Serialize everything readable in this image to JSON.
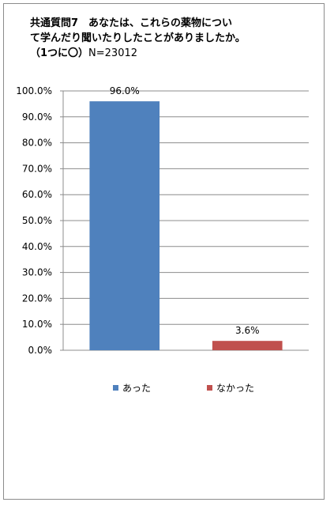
{
  "title": {
    "line1": "共通質問7　あなたは、これらの薬物につい",
    "line2": "て学んだり聞いたりしたことがありましたか。",
    "line3_prefix": "（1つに〇）",
    "line3_n": "N=23012"
  },
  "chart_data": {
    "type": "bar",
    "categories": [
      "あった",
      "なかった"
    ],
    "values": [
      96.0,
      3.6
    ],
    "value_labels": [
      "96.0%",
      "3.6%"
    ],
    "colors": [
      "#4f81bd",
      "#c0504d"
    ],
    "ylim": [
      0,
      100
    ],
    "yticks": [
      0,
      10,
      20,
      30,
      40,
      50,
      60,
      70,
      80,
      90,
      100
    ],
    "ytick_labels": [
      "0.0%",
      "10.0%",
      "20.0%",
      "30.0%",
      "40.0%",
      "50.0%",
      "60.0%",
      "70.0%",
      "80.0%",
      "90.0%",
      "100.0%"
    ],
    "grid": true,
    "legend_position": "bottom",
    "legend": [
      "あった",
      "なかった"
    ]
  }
}
